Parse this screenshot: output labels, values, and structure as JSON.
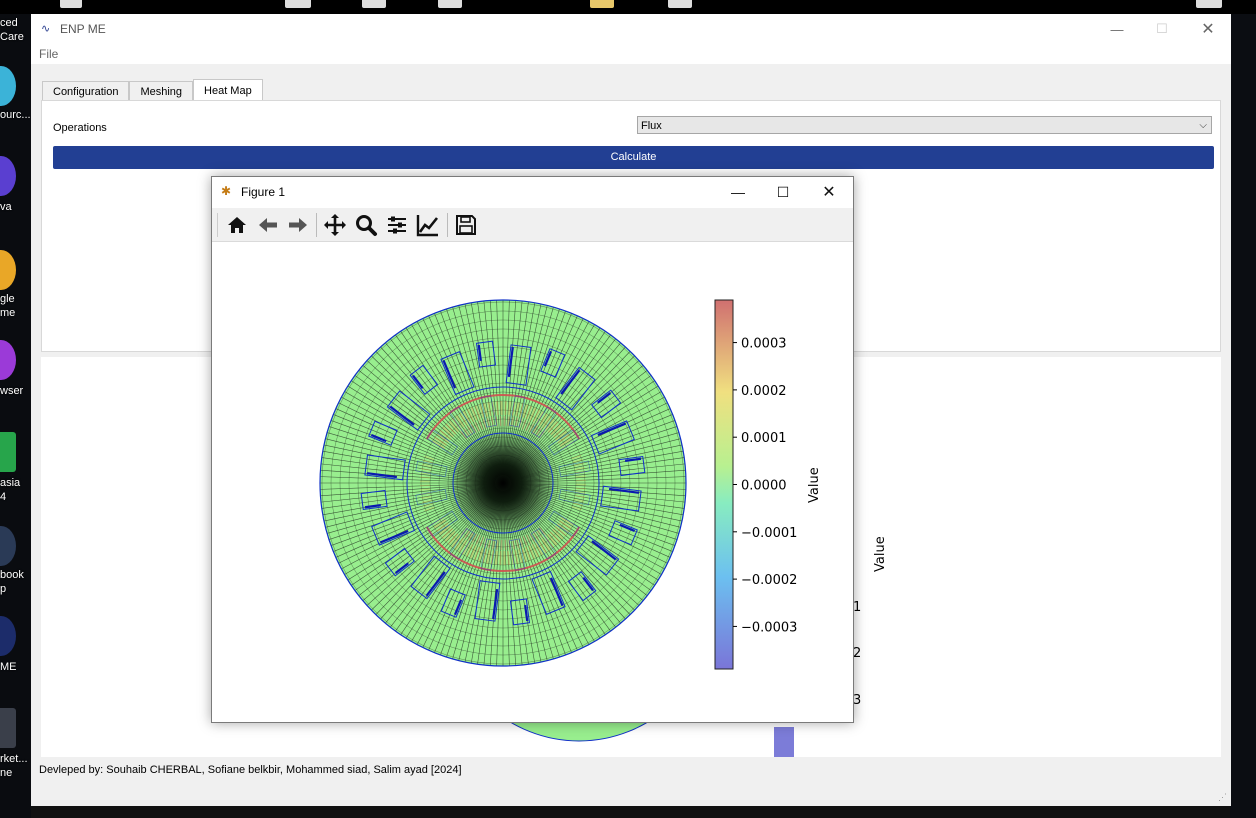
{
  "desktop": {
    "labels": [
      "ced",
      "Care",
      "ourc...",
      "va",
      "gle",
      "me",
      "wser",
      "asia",
      "4",
      "book",
      "p",
      "ME",
      "rket...",
      "ne"
    ]
  },
  "app": {
    "title": "ENP ME",
    "menu": {
      "file": "File"
    },
    "tabs": [
      {
        "label": "Configuration",
        "active": false
      },
      {
        "label": "Meshing",
        "active": false
      },
      {
        "label": "Heat Map",
        "active": true
      }
    ],
    "heatmap": {
      "operations_label": "Operations",
      "operations_value": "Flux",
      "calculate_label": "Calculate"
    },
    "background_plot": {
      "colorbar_label": "Value",
      "tick_fragments": [
        "1",
        "2",
        "3"
      ]
    },
    "footer": "Devleped by: Souhaib CHERBAL, Sofiane belkbir, Mohammed siad, Salim ayad [2024]"
  },
  "figure_window": {
    "title": "Figure 1",
    "toolbar": [
      "home-icon",
      "back-icon",
      "forward-icon",
      "pan-icon",
      "zoom-icon",
      "subplots-icon",
      "edit-axes-icon",
      "save-icon"
    ]
  },
  "chart_data": {
    "type": "heatmap",
    "description_of_geometry": "",
    "colorbar": {
      "label": "Value",
      "min": -0.00039,
      "max": 0.00039,
      "ticks": [
        0.0003,
        0.0002,
        0.0001,
        0.0,
        -0.0001,
        -0.0002,
        -0.0003
      ],
      "tick_labels": [
        "0.0003",
        "0.0002",
        "0.0001",
        "0.0000",
        "−0.0001",
        "−0.0002",
        "−0.0003"
      ],
      "colormap": "jet"
    },
    "colors": {
      "mesh_fill": "#98ee8e",
      "mesh_line": "#1e2a1e",
      "boundary": "#1030c8",
      "hot": "#d05050",
      "cool": "#7070e0"
    }
  }
}
